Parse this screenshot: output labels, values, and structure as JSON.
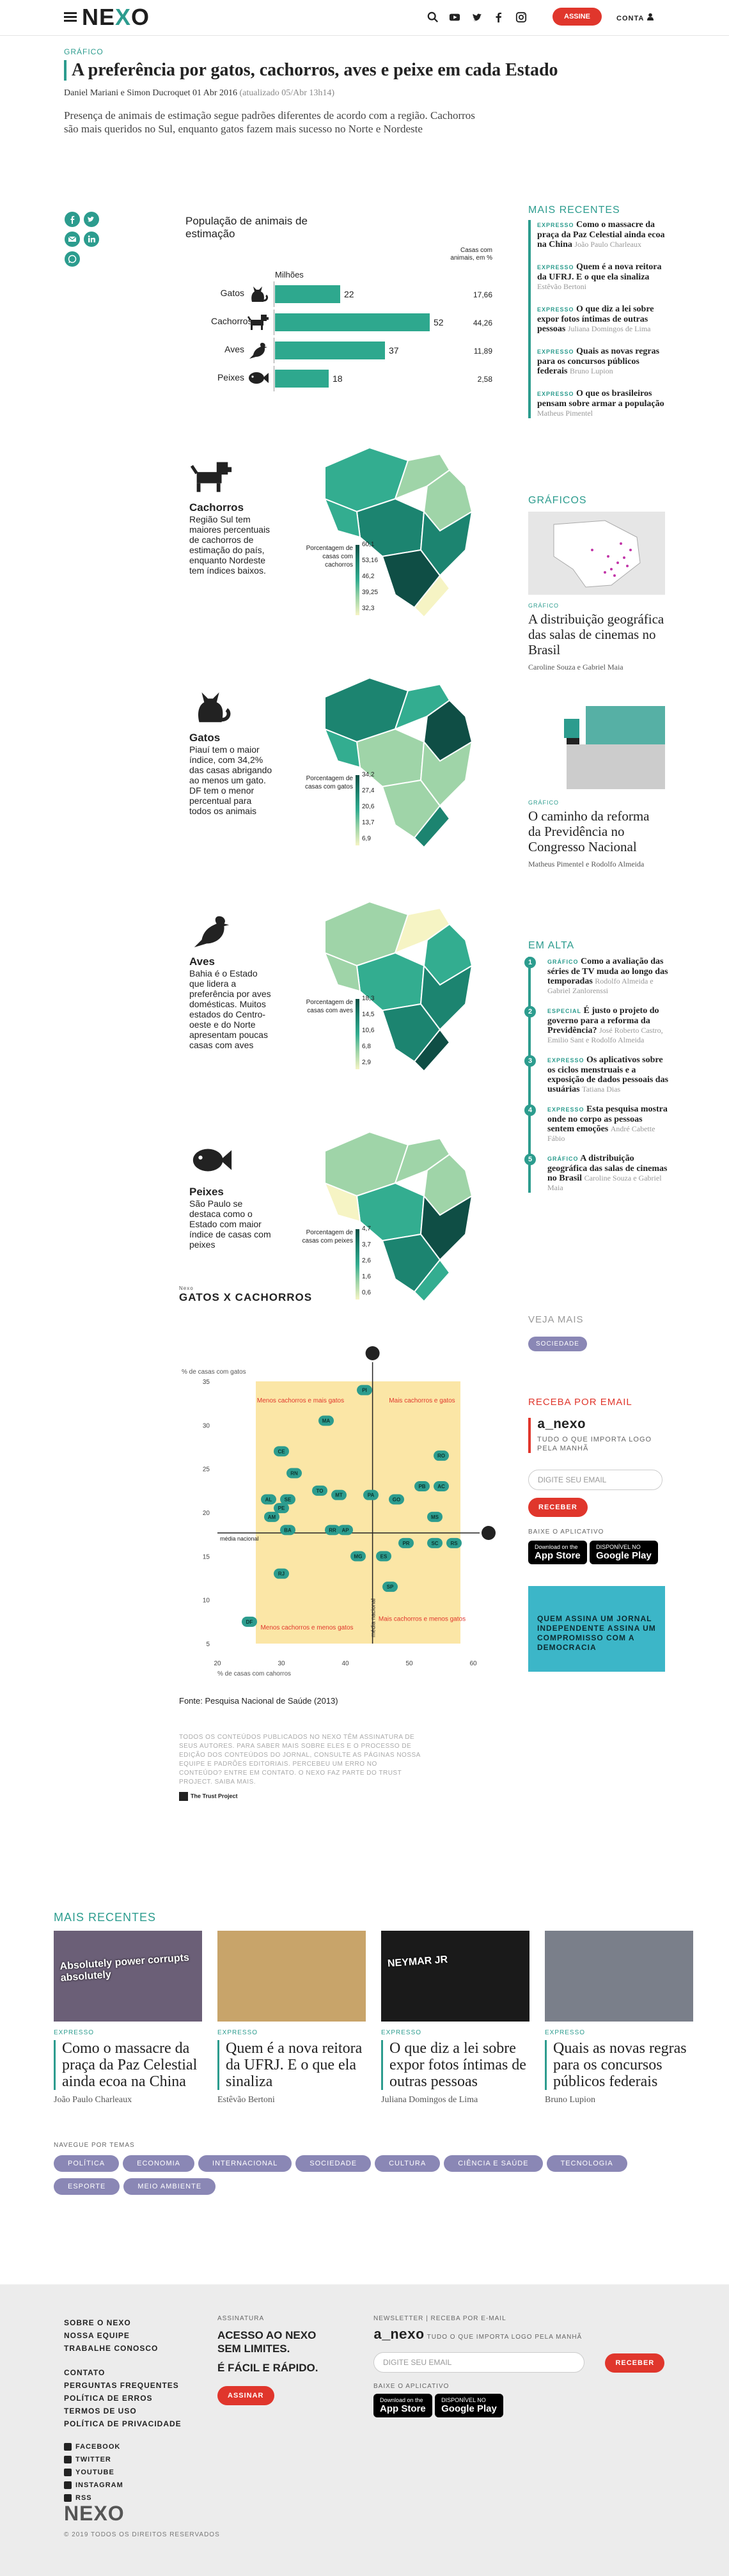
{
  "header": {
    "logo_text": "NE",
    "logo_x": "X",
    "logo_o": "O",
    "assine": "ASSINE",
    "conta": "CONTA"
  },
  "article": {
    "section": "GRÁFICO",
    "title": "A preferência por gatos, cachorros, aves e peixe em cada Estado",
    "byline": "Daniel Mariani e Simon Ducroquet",
    "date": "01 Abr 2016",
    "updated": "(atualizado 05/Abr 13h14)",
    "lede": "Presença de animais de estimação segue padrões diferentes de acordo com a região. Cachorros são mais queridos no Sul, enquanto gatos fazem mais sucesso no Norte e Nordeste"
  },
  "bar_chart": {
    "title": "População de animais de estimação",
    "col_left": "Milhões",
    "col_right": "Casas com animais, em %",
    "rows": [
      {
        "label": "Gatos",
        "value": 22,
        "value_text": "22",
        "pct": "17,66"
      },
      {
        "label": "Cachorros",
        "value": 52,
        "value_text": "52",
        "pct": "44,26"
      },
      {
        "label": "Aves",
        "value": 37,
        "value_text": "37",
        "pct": "11,89"
      },
      {
        "label": "Peixes",
        "value": 18,
        "value_text": "18",
        "pct": "2,58"
      }
    ]
  },
  "maps": [
    {
      "title": "Cachorros",
      "text": "Região Sul tem maiores percentuais de cachorros de estimação do país, enquanto Nordeste tem índices baixos.",
      "legend_title": "Porcentagem de casas com cachorros",
      "legend": [
        "60,1",
        "53,16",
        "46,2",
        "39,25",
        "32,3"
      ]
    },
    {
      "title": "Gatos",
      "text": "Piauí tem o maior índice, com 34,2% das casas abrigando ao menos um gato. DF tem o menor percentual para todos os animais",
      "legend_title": "Porcentagem de casas com gatos",
      "legend": [
        "34,2",
        "27,4",
        "20,6",
        "13,7",
        "6,9"
      ]
    },
    {
      "title": "Aves",
      "text": "Bahia é o Estado que lidera a preferência por aves domésticas. Muitos estados do Centro-oeste e do Norte apresentam poucas casas com aves",
      "legend_title": "Porcentagem de casas com aves",
      "legend": [
        "18,3",
        "14,5",
        "10,6",
        "6,8",
        "2,9"
      ]
    },
    {
      "title": "Peixes",
      "text": "São Paulo se destaca como o Estado com maior índice de casas com peixes",
      "legend_title": "Porcentagem de casas com peixes",
      "legend": [
        "4,7",
        "3,7",
        "2,6",
        "1,6",
        "0,6"
      ]
    }
  ],
  "scatter": {
    "kicker": "Nexo",
    "title": "GATOS X CACHORROS",
    "ylabel": "% de casas com gatos",
    "xlabel": "% de casas com cahorros",
    "q_tl": "Menos cachorros e mais gatos",
    "q_tr": "Mais cachorros e gatos",
    "q_bl": "Menos cachorros e menos gatos",
    "q_br": "Mais cachorros e menos gatos",
    "media_x": "média nacional",
    "media_y": "média nacional",
    "source": "Fonte: Pesquisa Nacional de Saúde (2013)"
  },
  "chart_data": {
    "type": "scatter",
    "title": "GATOS X CACHORROS",
    "xlabel": "% de casas com cahorros",
    "ylabel": "% de casas com gatos",
    "xlim": [
      20,
      60
    ],
    "ylim": [
      5,
      35
    ],
    "xticks": [
      "20",
      "30",
      "40",
      "50",
      "60"
    ],
    "yticks": [
      "35",
      "30",
      "25",
      "20",
      "15",
      "10",
      "5"
    ],
    "points": [
      {
        "label": "PI",
        "x": 43,
        "y": 34
      },
      {
        "label": "MA",
        "x": 37,
        "y": 30.5
      },
      {
        "label": "CE",
        "x": 30,
        "y": 27
      },
      {
        "label": "RO",
        "x": 55,
        "y": 26.5
      },
      {
        "label": "RN",
        "x": 32,
        "y": 24.5
      },
      {
        "label": "AC",
        "x": 55,
        "y": 23
      },
      {
        "label": "PB",
        "x": 52,
        "y": 23
      },
      {
        "label": "TO",
        "x": 36,
        "y": 22.5
      },
      {
        "label": "MT",
        "x": 39,
        "y": 22
      },
      {
        "label": "PA",
        "x": 44,
        "y": 22
      },
      {
        "label": "AL",
        "x": 28,
        "y": 21.5
      },
      {
        "label": "SE",
        "x": 31,
        "y": 21.5
      },
      {
        "label": "GO",
        "x": 48,
        "y": 21.5
      },
      {
        "label": "PE",
        "x": 30,
        "y": 20.5
      },
      {
        "label": "AM",
        "x": 28.5,
        "y": 19.5
      },
      {
        "label": "MS",
        "x": 54,
        "y": 19.5
      },
      {
        "label": "BA",
        "x": 31,
        "y": 18
      },
      {
        "label": "RR",
        "x": 38,
        "y": 18
      },
      {
        "label": "AP",
        "x": 40,
        "y": 18
      },
      {
        "label": "PR",
        "x": 49.5,
        "y": 16.5
      },
      {
        "label": "SC",
        "x": 54,
        "y": 16.5
      },
      {
        "label": "RS",
        "x": 57,
        "y": 16.5
      },
      {
        "label": "MG",
        "x": 42,
        "y": 15
      },
      {
        "label": "ES",
        "x": 46,
        "y": 15
      },
      {
        "label": "RJ",
        "x": 30,
        "y": 13
      },
      {
        "label": "SP",
        "x": 47,
        "y": 11.5
      },
      {
        "label": "DF",
        "x": 25,
        "y": 7.5
      }
    ],
    "mean_x": 44.26,
    "mean_y": 17.66
  },
  "disclaimer": "TODOS OS CONTEÚDOS PUBLICADOS NO NEXO TÊM ASSINATURA DE SEUS AUTORES. PARA SABER MAIS SOBRE ELES E O PROCESSO DE EDIÇÃO DOS CONTEÚDOS DO JORNAL, CONSULTE AS PÁGINAS NOSSA EQUIPE E PADRÕES EDITORIAIS. PERCEBEU UM ERRO NO CONTEÚDO? ENTRE EM CONTATO. O NEXO FAZ PARTE DO TRUST PROJECT. SAIBA MAIS.",
  "trust": "The Trust Project",
  "sidebar": {
    "recent_title": "MAIS RECENTES",
    "recent": [
      {
        "tag": "EXPRESSO",
        "title": "Como o massacre da praça da Paz Celestial ainda ecoa na China",
        "author": "João Paulo Charleaux"
      },
      {
        "tag": "EXPRESSO",
        "title": "Quem é a nova reitora da UFRJ. E o que ela sinaliza",
        "author": "Estêvão Bertoni"
      },
      {
        "tag": "EXPRESSO",
        "title": "O que diz a lei sobre expor fotos íntimas de outras pessoas",
        "author": "Juliana Domingos de Lima"
      },
      {
        "tag": "EXPRESSO",
        "title": "Quais as novas regras para os concursos públicos federais",
        "author": "Bruno Lupion"
      },
      {
        "tag": "EXPRESSO",
        "title": "O que os brasileiros pensam sobre armar a população",
        "author": "Matheus Pimentel"
      }
    ],
    "graficos_title": "GRÁFICOS",
    "graficos": [
      {
        "tag": "GRÁFICO",
        "title": "A distribuição geográfica das salas de cinemas no Brasil",
        "author": "Caroline Souza e Gabriel Maia"
      },
      {
        "tag": "GRÁFICO",
        "title": "O caminho da reforma da Previdência no Congresso Nacional",
        "author": "Matheus Pimentel e Rodolfo Almeida"
      }
    ],
    "em_alta_title": "EM ALTA",
    "em_alta": [
      {
        "n": "1",
        "tag": "GRÁFICO",
        "title": "Como a avaliação das séries de TV muda ao longo das temporadas",
        "author": "Rodolfo Almeida e Gabriel Zanlorenssi"
      },
      {
        "n": "2",
        "tag": "ESPECIAL",
        "title": "É justo o projeto do governo para a reforma da Previdência?",
        "author": "José Roberto Castro, Emilio Sant e Rodolfo Almeida"
      },
      {
        "n": "3",
        "tag": "EXPRESSO",
        "title": "Os aplicativos sobre os ciclos menstruais e a exposição de dados pessoais das usuárias",
        "author": "Tatiana Dias"
      },
      {
        "n": "4",
        "tag": "EXPRESSO",
        "title": "Esta pesquisa mostra onde no corpo as pessoas sentem emoções",
        "author": "André Cabette Fábio"
      },
      {
        "n": "5",
        "tag": "GRÁFICO",
        "title": "A distribuição geográfica das salas de cinemas no Brasil",
        "author": "Caroline Souza e Gabriel Maia"
      }
    ],
    "veja_mais": "VEJA MAIS",
    "veja_tag": "SOCIEDADE",
    "receba": "RECEBA POR EMAIL",
    "anexo": "a_nexo",
    "anexo_sub": "TUDO O QUE IMPORTA LOGO PELA MANHÃ",
    "email_ph": "DIGITE SEU EMAIL",
    "receber": "RECEBER",
    "baixe": "BAIXE O APLICATIVO",
    "appstore_small": "Download on the",
    "appstore": "App Store",
    "gplay_small": "DISPONÍVEL NO",
    "gplay": "Google Play",
    "promo": "QUEM ASSINA UM JORNAL INDEPENDENTE ASSINA UM COMPROMISSO COM A DEMOCRACIA"
  },
  "bottom": {
    "recent_title": "MAIS RECENTES",
    "cards": [
      {
        "tag": "EXPRESSO",
        "title": "Como o massacre da praça da Paz Celestial ainda ecoa na China",
        "author": "João Paulo Charleaux",
        "photo_text": "Absolutely power corrupts absolutely"
      },
      {
        "tag": "EXPRESSO",
        "title": "Quem é a nova reitora da UFRJ. E o que ela sinaliza",
        "author": "Estêvão Bertoni",
        "photo_text": ""
      },
      {
        "tag": "EXPRESSO",
        "title": "O que diz a lei sobre expor fotos íntimas de outras pessoas",
        "author": "Juliana Domingos de Lima",
        "photo_text": "NEYMAR JR"
      },
      {
        "tag": "EXPRESSO",
        "title": "Quais as novas regras para os concursos públicos federais",
        "author": "Bruno Lupion",
        "photo_text": ""
      }
    ],
    "navegue": "NAVEGUE POR TEMAS",
    "temas": [
      "POLÍTICA",
      "ECONOMIA",
      "INTERNACIONAL",
      "SOCIEDADE",
      "CULTURA",
      "CIÊNCIA E SAÚDE",
      "TECNOLOGIA",
      "ESPORTE",
      "MEIO AMBIENTE"
    ]
  },
  "footer": {
    "links1": [
      "SOBRE O NEXO",
      "NOSSA EQUIPE",
      "TRABALHE CONOSCO"
    ],
    "links2": [
      "CONTATO",
      "PERGUNTAS FREQUENTES",
      "POLÍTICA DE ERROS",
      "TERMOS DE USO",
      "POLÍTICA DE PRIVACIDADE"
    ],
    "social": [
      "FACEBOOK",
      "TWITTER",
      "YOUTUBE",
      "INSTAGRAM",
      "RSS"
    ],
    "assinatura_label": "ASSINATURA",
    "assinatura_title": "ACESSO AO NEXO SEM LIMITES.",
    "assinatura_sub": "É FÁCIL E RÁPIDO.",
    "assinar": "ASSINAR",
    "newsletter_label": "NEWSLETTER | RECEBA POR E-MAIL",
    "anexo": "a_nexo",
    "anexo_sub": "TUDO O QUE IMPORTA LOGO PELA MANHÃ",
    "email_ph": "DIGITE SEU EMAIL",
    "receber": "RECEBER",
    "baixe": "BAIXE O APLICATIVO",
    "copyright": "© 2019 TODOS OS DIREITOS RESERVADOS"
  },
  "colors": {
    "accent": "#2c9c8e",
    "red": "#e0362c",
    "purple": "#8a87b5",
    "map_dark": "#1f6b5a",
    "map_light": "#f6f4c4"
  }
}
